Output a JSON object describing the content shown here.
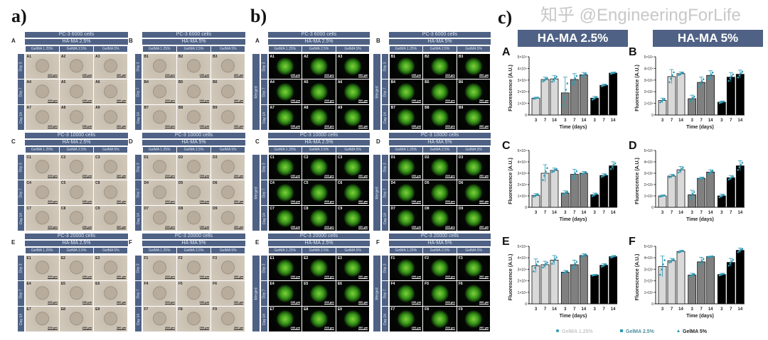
{
  "panel_labels": {
    "a": "a)",
    "b": "b)",
    "c": "c)"
  },
  "columns": [
    "GelMA 1.25%",
    "GelMA 2.5%",
    "GelMA 5%"
  ],
  "days": [
    "Day 3",
    "Day 7",
    "Day 14"
  ],
  "merged_label": "Merged",
  "scale_bar": "200 µm",
  "blocks": [
    {
      "letter": "A",
      "title": "PC-3 6000 cells",
      "hama": "HA-MA 2.5%"
    },
    {
      "letter": "B",
      "title": "PC-3 6000 cells",
      "hama": "HA-MA 5%"
    },
    {
      "letter": "C",
      "title": "PC-3 10000 cells",
      "hama": "HA-MA 2.5%"
    },
    {
      "letter": "D",
      "title": "PC-3 10000 cells",
      "hama": "HA-MA 5%"
    },
    {
      "letter": "E",
      "title": "PC-3 20000 cells",
      "hama": "HA-MA 2.5%"
    },
    {
      "letter": "F",
      "title": "PC-3 20000 cells",
      "hama": "HA-MA 5%"
    }
  ],
  "c_titles": [
    "HA-MA 2.5%",
    "HA-MA 5%"
  ],
  "watermark": "知乎 @EngineeringForLife",
  "colors": {
    "header": "#4f6285",
    "bar_gelma_1_25": "#d9d9d9",
    "bar_gelma_2_5": "#808080",
    "bar_gelma_5": "#000000",
    "points": "#2e9ab3"
  },
  "chart_data": [
    {
      "type": "bar",
      "panel": "A",
      "categories": [
        "3",
        "7",
        "14"
      ],
      "xlabel": "Time (days)",
      "ylabel": "Fluorescence (A.U.)",
      "ylim": [
        0,
        50000
      ],
      "yticks": [
        "0",
        "1×10⁴",
        "2×10⁴",
        "3×10⁴",
        "4×10⁴",
        "5×10⁴"
      ],
      "series": [
        {
          "name": "GelMA 1.25%",
          "values": [
            14500,
            30500,
            31000
          ],
          "errors": [
            800,
            2000,
            3000
          ]
        },
        {
          "name": "GelMA 2.5%",
          "values": [
            19000,
            30500,
            34500
          ],
          "errors": [
            13500,
            5000,
            2000
          ]
        },
        {
          "name": "GelMA 5%",
          "values": [
            14500,
            25500,
            36000
          ],
          "errors": [
            1500,
            1000,
            800
          ]
        }
      ]
    },
    {
      "type": "bar",
      "panel": "B",
      "categories": [
        "3",
        "7",
        "14"
      ],
      "xlabel": "Time (days)",
      "ylabel": "Fluorescence (A.U.)",
      "ylim": [
        0,
        50000
      ],
      "yticks": [
        "0",
        "1×10⁴",
        "2×10⁴",
        "3×10⁴",
        "4×10⁴",
        "5×10⁴"
      ],
      "series": [
        {
          "name": "GelMA 1.25%",
          "values": [
            12500,
            33000,
            35500
          ],
          "errors": [
            2000,
            6000,
            1500
          ]
        },
        {
          "name": "GelMA 2.5%",
          "values": [
            14000,
            28000,
            34000
          ],
          "errors": [
            3000,
            4500,
            4000
          ]
        },
        {
          "name": "GelMA 5%",
          "values": [
            11000,
            32500,
            35000
          ],
          "errors": [
            1000,
            4000,
            3500
          ]
        }
      ]
    },
    {
      "type": "bar",
      "panel": "C",
      "categories": [
        "3",
        "7",
        "14"
      ],
      "xlabel": "Time (days)",
      "ylabel": "Fluorescence (A.U.)",
      "ylim": [
        0,
        50000
      ],
      "yticks": [
        "0",
        "1×10⁴",
        "2×10⁴",
        "3×10⁴",
        "4×10⁴",
        "5×10⁴"
      ],
      "series": [
        {
          "name": "GelMA 1.25%",
          "values": [
            10500,
            30000,
            32500
          ],
          "errors": [
            1500,
            7500,
            2000
          ]
        },
        {
          "name": "GelMA 2.5%",
          "values": [
            12500,
            29000,
            30000
          ],
          "errors": [
            2000,
            4500,
            1500
          ]
        },
        {
          "name": "GelMA 5%",
          "values": [
            11000,
            28000,
            36500
          ],
          "errors": [
            1500,
            1500,
            3500
          ]
        }
      ]
    },
    {
      "type": "bar",
      "panel": "D",
      "categories": [
        "3",
        "7",
        "14"
      ],
      "xlabel": "Time (days)",
      "ylabel": "Fluorescence (A.U.)",
      "ylim": [
        0,
        50000
      ],
      "yticks": [
        "0",
        "1×10⁴",
        "2×10⁴",
        "3×10⁴",
        "4×10⁴",
        "5×10⁴"
      ],
      "series": [
        {
          "name": "GelMA 1.25%",
          "values": [
            10000,
            27500,
            33000
          ],
          "errors": [
            800,
            1500,
            3000
          ]
        },
        {
          "name": "GelMA 2.5%",
          "values": [
            11000,
            25500,
            31000
          ],
          "errors": [
            4000,
            1000,
            2000
          ]
        },
        {
          "name": "GelMA 5%",
          "values": [
            10000,
            26000,
            36500
          ],
          "errors": [
            1500,
            2000,
            4500
          ]
        }
      ]
    },
    {
      "type": "bar",
      "panel": "E",
      "categories": [
        "3",
        "7",
        "14"
      ],
      "xlabel": "Time (days)",
      "ylabel": "Fluorescence (A.U.)",
      "ylim": [
        0,
        50000
      ],
      "yticks": [
        "0",
        "1×10⁴",
        "2×10⁴",
        "3×10⁴",
        "4×10⁴",
        "5×10⁴"
      ],
      "series": [
        {
          "name": "GelMA 1.25%",
          "values": [
            33000,
            34000,
            38000
          ],
          "errors": [
            6000,
            3000,
            4000
          ]
        },
        {
          "name": "GelMA 2.5%",
          "values": [
            27500,
            34000,
            42000
          ],
          "errors": [
            1500,
            4000,
            1500
          ]
        },
        {
          "name": "GelMA 5%",
          "values": [
            25000,
            33500,
            41000
          ],
          "errors": [
            500,
            1500,
            1000
          ]
        }
      ]
    },
    {
      "type": "bar",
      "panel": "F",
      "categories": [
        "3",
        "7",
        "14"
      ],
      "xlabel": "Time (days)",
      "ylabel": "Fluorescence (A.U.)",
      "ylim": [
        0,
        50000
      ],
      "yticks": [
        "0",
        "1×10⁴",
        "2×10⁴",
        "3×10⁴",
        "4×10⁴",
        "5×10⁴"
      ],
      "series": [
        {
          "name": "GelMA 1.25%",
          "values": [
            32500,
            37500,
            45500
          ],
          "errors": [
            9000,
            2000,
            1000
          ]
        },
        {
          "name": "GelMA 2.5%",
          "values": [
            25000,
            36500,
            41000
          ],
          "errors": [
            1500,
            4000,
            500
          ]
        },
        {
          "name": "GelMA 5%",
          "values": [
            25500,
            36000,
            46500
          ],
          "errors": [
            1000,
            3500,
            2000
          ]
        }
      ]
    }
  ],
  "legend": [
    "GelMA 1.25%",
    "GelMA 2.5%",
    "GelMA 5%"
  ]
}
